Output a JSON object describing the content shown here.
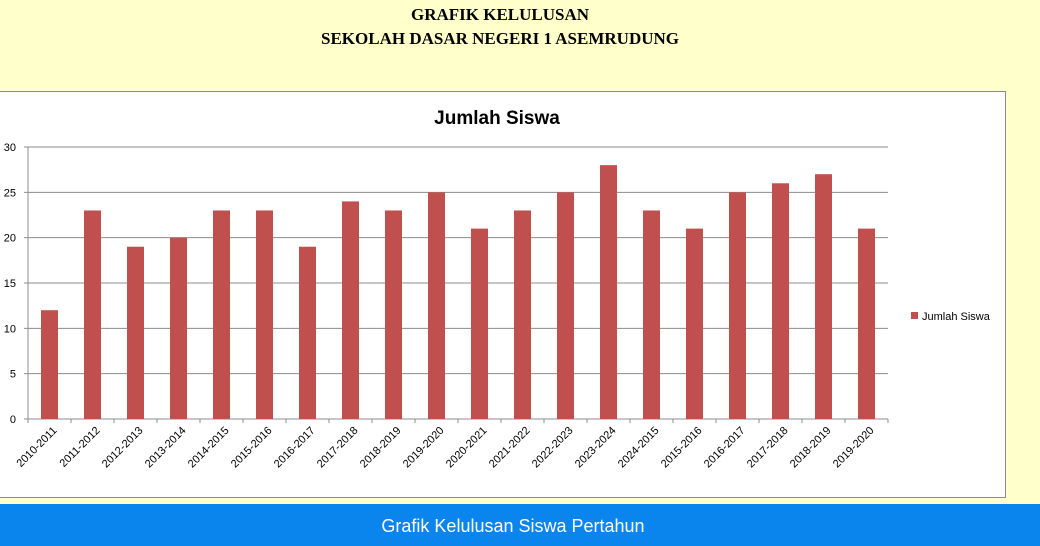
{
  "header": {
    "line1": "GRAFIK KELULUSAN",
    "line2": "SEKOLAH DASAR NEGERI 1 ASEMRUDUNG"
  },
  "footer": {
    "text": "Grafik Kelulusan Siswa Pertahun"
  },
  "colors": {
    "bar": "#c0504d",
    "footer": "#0a85ee",
    "page_background": "#ffffcc"
  },
  "chart_data": {
    "type": "bar",
    "title": "Jumlah Siswa",
    "xlabel": "",
    "ylabel": "",
    "ylim": [
      0,
      30
    ],
    "yticks": [
      0,
      5,
      10,
      15,
      20,
      25,
      30
    ],
    "grid": true,
    "legend_position": "right",
    "categories": [
      "2010-2011",
      "2011-2012",
      "2012-2013",
      "2013-2014",
      "2014-2015",
      "2015-2016",
      "2016-2017",
      "2017-2018",
      "2018-2019",
      "2019-2020",
      "2020-2021",
      "2021-2022",
      "2022-2023",
      "2023-2024",
      "2024-2015",
      "2015-2016",
      "2016-2017",
      "2017-2018",
      "2018-2019",
      "2019-2020"
    ],
    "series": [
      {
        "name": "Jumlah Siswa",
        "values": [
          12,
          23,
          19,
          20,
          23,
          23,
          19,
          24,
          23,
          25,
          21,
          23,
          25,
          28,
          23,
          21,
          25,
          26,
          27,
          21
        ]
      }
    ]
  }
}
